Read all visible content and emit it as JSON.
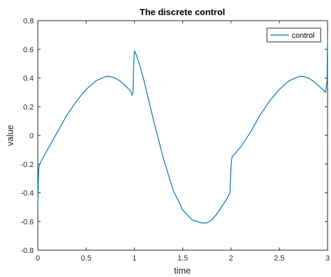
{
  "chart_data": {
    "type": "line",
    "title": "The discrete control",
    "xlabel": "time",
    "ylabel": "value",
    "xlim": [
      0,
      3
    ],
    "ylim": [
      -0.8,
      0.8
    ],
    "xticks": [
      0,
      0.5,
      1,
      1.5,
      2,
      2.5,
      3
    ],
    "xtick_labels": [
      "0",
      "0.5",
      "1",
      "1.5",
      "2",
      "2.5",
      "3"
    ],
    "yticks": [
      -0.8,
      -0.6,
      -0.4,
      -0.2,
      0,
      0.2,
      0.4,
      0.6,
      0.8
    ],
    "ytick_labels": [
      "-0.8",
      "-0.6",
      "-0.4",
      "-0.2",
      "0",
      "0.2",
      "0.4",
      "0.6",
      "0.8"
    ],
    "grid": false,
    "legend_position": "top-right",
    "series": [
      {
        "name": "control",
        "color": "#0072BD",
        "x": [
          0,
          0.005,
          0.01,
          0.02,
          0.05,
          0.1,
          0.2,
          0.3,
          0.4,
          0.5,
          0.6,
          0.7,
          0.75,
          0.8,
          0.85,
          0.9,
          0.93,
          0.96,
          0.975,
          0.985,
          0.99,
          1.0,
          1.02,
          1.05,
          1.1,
          1.2,
          1.3,
          1.4,
          1.5,
          1.6,
          1.7,
          1.75,
          1.8,
          1.85,
          1.9,
          1.95,
          1.99,
          2.0,
          2.01,
          2.05,
          2.1,
          2.2,
          2.3,
          2.4,
          2.5,
          2.6,
          2.7,
          2.75,
          2.8,
          2.85,
          2.9,
          2.95,
          2.98,
          2.995,
          3.0
        ],
        "y": [
          -0.48,
          -0.32,
          -0.22,
          -0.2,
          -0.16,
          -0.1,
          0.02,
          0.14,
          0.24,
          0.32,
          0.38,
          0.41,
          0.41,
          0.4,
          0.38,
          0.35,
          0.33,
          0.31,
          0.28,
          0.3,
          0.45,
          0.59,
          0.56,
          0.5,
          0.38,
          0.1,
          -0.16,
          -0.38,
          -0.52,
          -0.59,
          -0.61,
          -0.61,
          -0.59,
          -0.55,
          -0.5,
          -0.45,
          -0.4,
          -0.22,
          -0.15,
          -0.12,
          -0.08,
          0.02,
          0.14,
          0.24,
          0.32,
          0.38,
          0.41,
          0.41,
          0.4,
          0.38,
          0.35,
          0.32,
          0.3,
          0.38,
          0.7
        ]
      }
    ]
  }
}
